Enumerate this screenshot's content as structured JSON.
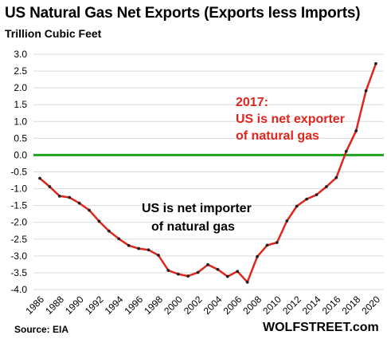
{
  "header": {
    "title": "US Natural Gas Net Exports (Exports less Imports)",
    "subtitle": "Trillion Cubic Feet"
  },
  "footer": {
    "source": "Source: EIA",
    "brand": "WOLFSTREET.com"
  },
  "colors": {
    "series_line": "#e0251c",
    "marker": "#222222",
    "zero_line": "#1fa31f",
    "gridline": "#d9d9d9",
    "annotation_red": "#e0251c",
    "annotation_black": "#000000"
  },
  "chart_data": {
    "type": "line",
    "title": "US Natural Gas Net Exports (Exports less Imports)",
    "ylabel": "Trillion Cubic Feet",
    "xlabel": "",
    "ylim": [
      -4.0,
      3.0
    ],
    "yticks": [
      "3.0",
      "2.5",
      "2.0",
      "1.5",
      "1.0",
      "0.5",
      "0.0",
      "-0.5",
      "-1.0",
      "-1.5",
      "-2.0",
      "-2.5",
      "-3.0",
      "-3.5",
      "-4.0"
    ],
    "ytick_values": [
      3.0,
      2.5,
      2.0,
      1.5,
      1.0,
      0.5,
      0.0,
      -0.5,
      -1.0,
      -1.5,
      -2.0,
      -2.5,
      -3.0,
      -3.5,
      -4.0
    ],
    "xticks": [
      "1986",
      "1988",
      "1990",
      "1992",
      "1994",
      "1996",
      "1998",
      "2000",
      "2002",
      "2004",
      "2006",
      "2008",
      "2010",
      "2012",
      "2014",
      "2016",
      "2018",
      "2020"
    ],
    "grid": true,
    "zero_line": true,
    "series": [
      {
        "x": [
          1986,
          1987,
          1988,
          1989,
          1990,
          1991,
          1992,
          1993,
          1994,
          1995,
          1996,
          1997,
          1998,
          1999,
          2000,
          2001,
          2002,
          2003,
          2004,
          2005,
          2006,
          2007,
          2008,
          2009,
          2010,
          2011,
          2012,
          2013,
          2014,
          2015,
          2016,
          2017,
          2018,
          2019,
          2020
        ],
        "values": [
          -0.69,
          -0.94,
          -1.22,
          -1.26,
          -1.43,
          -1.64,
          -1.97,
          -2.26,
          -2.49,
          -2.69,
          -2.78,
          -2.82,
          -2.98,
          -3.43,
          -3.54,
          -3.6,
          -3.49,
          -3.26,
          -3.4,
          -3.61,
          -3.46,
          -3.78,
          -3.02,
          -2.68,
          -2.6,
          -1.96,
          -1.52,
          -1.31,
          -1.18,
          -0.94,
          -0.67,
          0.11,
          0.72,
          1.91,
          2.72
        ]
      }
    ],
    "annotations": [
      {
        "lines": [
          "2017:",
          "US is net exporter",
          "of natural gas"
        ],
        "style": "red"
      },
      {
        "lines": [
          "US is net importer",
          "of natural gas"
        ],
        "style": "black"
      }
    ]
  }
}
